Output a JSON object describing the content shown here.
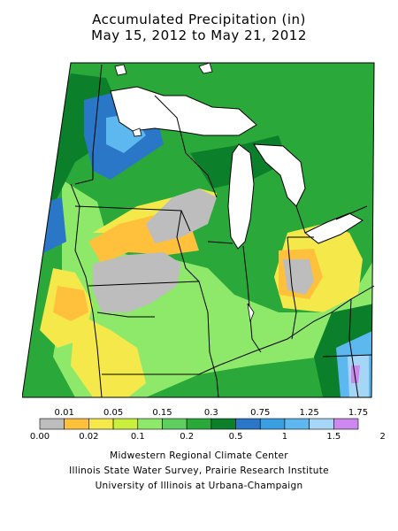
{
  "header": {
    "title_line1": "Accumulated Precipitation (in)",
    "title_line2": "May 15, 2012 to May 21, 2012"
  },
  "legend": {
    "bins": [
      {
        "color": "#bdbdbd"
      },
      {
        "color": "#ffc13b"
      },
      {
        "color": "#f5e84a"
      },
      {
        "color": "#c8f03c"
      },
      {
        "color": "#8ee86a"
      },
      {
        "color": "#5ecf5e"
      },
      {
        "color": "#2ba83a"
      },
      {
        "color": "#0b7f2a"
      },
      {
        "color": "#2a77c7"
      },
      {
        "color": "#3a9fe0"
      },
      {
        "color": "#5cb8ee"
      },
      {
        "color": "#a6d6f5"
      },
      {
        "color": "#cc88ee"
      }
    ],
    "labels_top": [
      "0.01",
      "0.05",
      "0.15",
      "0.3",
      "0.75",
      "1.25",
      "1.75"
    ],
    "labels_bottom": [
      "0.00",
      "0.02",
      "0.1",
      "0.2",
      "0.5",
      "1",
      "1.5",
      "2"
    ]
  },
  "credits": {
    "line1": "Midwestern Regional Climate Center",
    "line2": "Illinois State Water Survey, Prairie Research Institute",
    "line3": "University of Illinois at Urbana-Champaign"
  }
}
